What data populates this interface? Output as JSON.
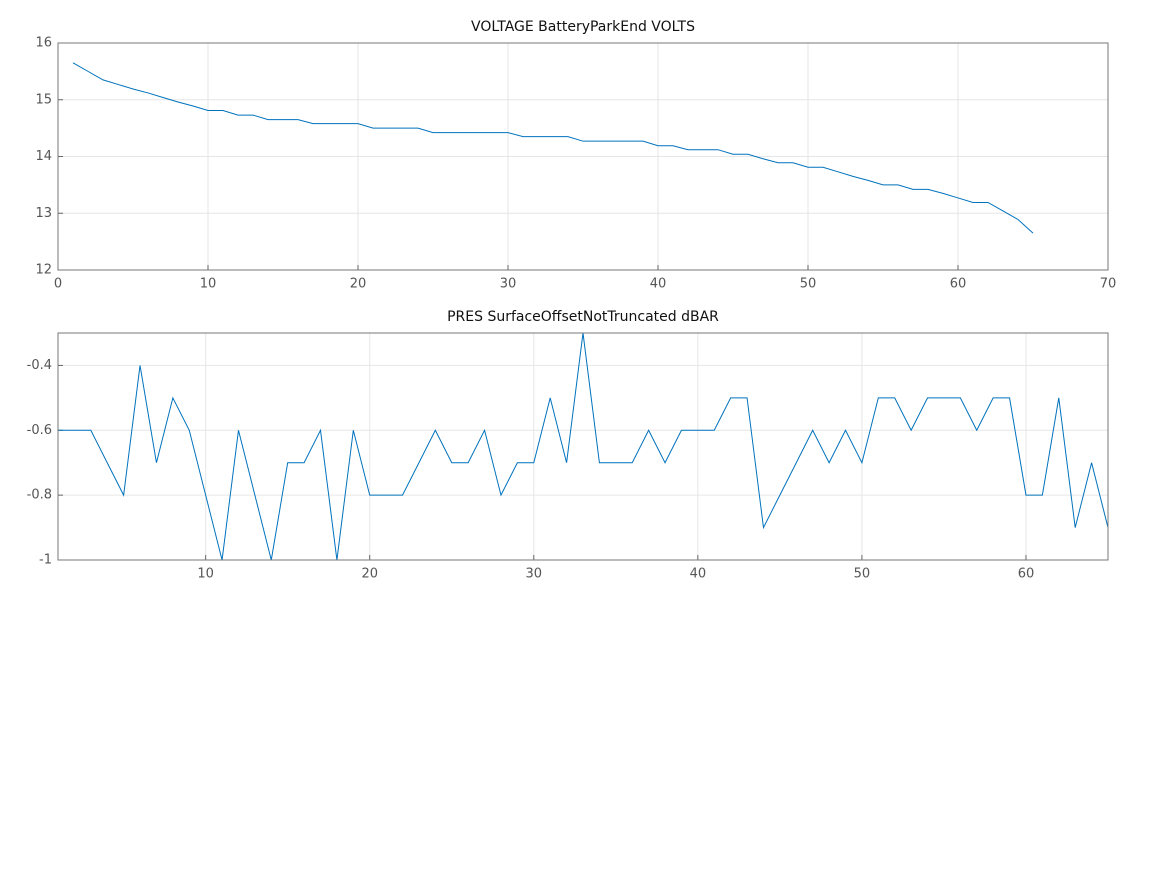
{
  "chart_data": [
    {
      "type": "line",
      "title": "VOLTAGE BatteryParkEnd VOLTS",
      "color": "#0072bd",
      "grid": true,
      "x": [
        1,
        2,
        3,
        4,
        5,
        6,
        7,
        8,
        9,
        10,
        11,
        12,
        13,
        14,
        15,
        16,
        17,
        18,
        19,
        20,
        21,
        22,
        23,
        24,
        25,
        26,
        27,
        28,
        29,
        30,
        31,
        32,
        33,
        34,
        35,
        36,
        37,
        38,
        39,
        40,
        41,
        42,
        43,
        44,
        45,
        46,
        47,
        48,
        49,
        50,
        51,
        52,
        53,
        54,
        55,
        56,
        57,
        58,
        59,
        60,
        61,
        62,
        63,
        64,
        65
      ],
      "values": [
        15.65,
        15.5,
        15.35,
        15.27,
        15.19,
        15.12,
        15.04,
        14.96,
        14.89,
        14.81,
        14.81,
        14.73,
        14.73,
        14.65,
        14.65,
        14.65,
        14.58,
        14.58,
        14.58,
        14.58,
        14.5,
        14.5,
        14.5,
        14.5,
        14.42,
        14.42,
        14.42,
        14.42,
        14.42,
        14.42,
        14.35,
        14.35,
        14.35,
        14.35,
        14.27,
        14.27,
        14.27,
        14.27,
        14.27,
        14.19,
        14.19,
        14.12,
        14.12,
        14.12,
        14.04,
        14.04,
        13.96,
        13.89,
        13.89,
        13.81,
        13.81,
        13.73,
        13.65,
        13.58,
        13.5,
        13.5,
        13.42,
        13.42,
        13.35,
        13.27,
        13.19,
        13.19,
        13.04,
        12.89,
        12.65
      ],
      "xlim": [
        0,
        70
      ],
      "xticks": [
        0,
        10,
        20,
        30,
        40,
        50,
        60,
        70
      ],
      "ylim": [
        12,
        16
      ],
      "yticks": [
        12,
        13,
        14,
        15,
        16
      ]
    },
    {
      "type": "line",
      "title": "PRES SurfaceOffsetNotTruncated dBAR",
      "color": "#0072bd",
      "grid": true,
      "x": [
        1,
        2,
        3,
        4,
        5,
        6,
        7,
        8,
        9,
        10,
        11,
        12,
        13,
        14,
        15,
        16,
        17,
        18,
        19,
        20,
        21,
        22,
        23,
        24,
        25,
        26,
        27,
        28,
        29,
        30,
        31,
        32,
        33,
        34,
        35,
        36,
        37,
        38,
        39,
        40,
        41,
        42,
        43,
        44,
        45,
        46,
        47,
        48,
        49,
        50,
        51,
        52,
        53,
        54,
        55,
        56,
        57,
        58,
        59,
        60,
        61,
        62,
        63,
        64,
        65
      ],
      "values": [
        -0.6,
        -0.6,
        -0.6,
        -0.7,
        -0.8,
        -0.4,
        -0.7,
        -0.5,
        -0.6,
        -0.8,
        -1,
        -0.6,
        -0.8,
        -1,
        -0.7,
        -0.7,
        -0.6,
        -1,
        -0.6,
        -0.8,
        -0.8,
        -0.8,
        -0.7,
        -0.6,
        -0.7,
        -0.7,
        -0.6,
        -0.8,
        -0.7,
        -0.7,
        -0.5,
        -0.7,
        -0.3,
        -0.7,
        -0.7,
        -0.7,
        -0.6,
        -0.7,
        -0.6,
        -0.6,
        -0.6,
        -0.5,
        -0.5,
        -0.9,
        -0.8,
        -0.7,
        -0.6,
        -0.7,
        -0.6,
        -0.7,
        -0.5,
        -0.5,
        -0.6,
        -0.5,
        -0.5,
        -0.5,
        -0.6,
        -0.5,
        -0.5,
        -0.8,
        -0.8,
        -0.5,
        -0.9,
        -0.7,
        -0.9
      ],
      "xlim": [
        1,
        65
      ],
      "xticks": [
        10,
        20,
        30,
        40,
        50,
        60
      ],
      "ylim": [
        -1,
        -0.3
      ],
      "yticks": [
        -1,
        -0.8,
        -0.6,
        -0.4
      ]
    }
  ]
}
